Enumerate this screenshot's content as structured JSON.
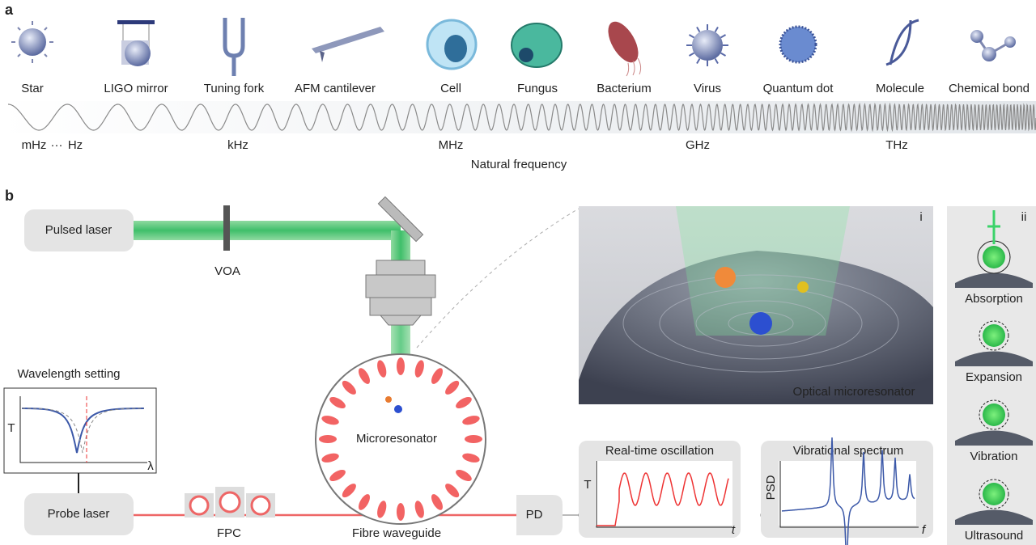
{
  "panel_a": {
    "label": "a",
    "objects": [
      "Star",
      "LIGO mirror",
      "Tuning fork",
      "AFM cantilever",
      "Cell",
      "Fungus",
      "Bacterium",
      "Virus",
      "Quantum dot",
      "Molecule",
      "Chemical bond"
    ],
    "frequency_labels": [
      "mHz",
      "···",
      "Hz",
      "kHz",
      "MHz",
      "GHz",
      "THz"
    ],
    "axis_title": "Natural frequency"
  },
  "panel_b": {
    "label": "b",
    "pulsed_laser": "Pulsed laser",
    "voa": "VOA",
    "wavelength_setting": {
      "title": "Wavelength setting",
      "y_label": "T",
      "x_label": "λ"
    },
    "probe_laser": "Probe laser",
    "fpc": "FPC",
    "microresonator": "Microresonator",
    "fibre_waveguide": "Fibre waveguide",
    "pd": "PD",
    "real_time": {
      "title": "Real-time oscillation",
      "y_label": "T",
      "x_label": "t"
    },
    "spectrum": {
      "title": "Vibrational spectrum",
      "y_label": "PSD",
      "x_label": "f"
    },
    "inset_i": {
      "label": "i",
      "caption": "Optical microresonator"
    },
    "inset_ii": {
      "label": "ii",
      "mechanisms": [
        "Absorption",
        "Expansion",
        "Vibration",
        "Ultrasound"
      ]
    }
  }
}
